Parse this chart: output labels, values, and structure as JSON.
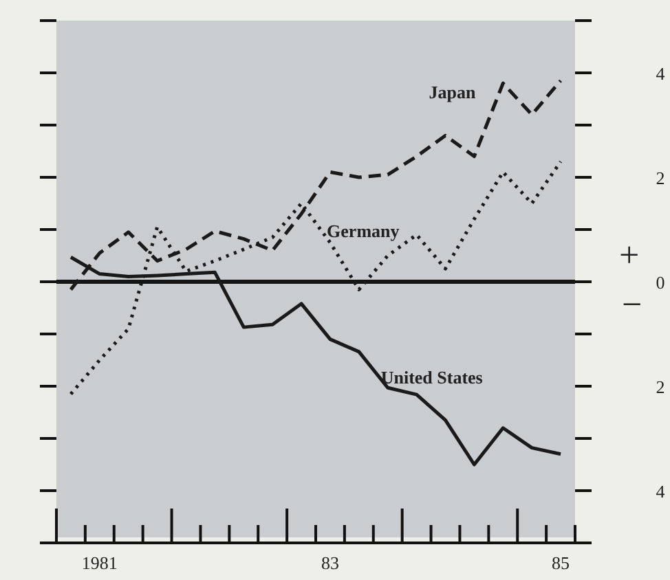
{
  "chart_data": {
    "type": "line",
    "categories": [
      null,
      "1981",
      null,
      null,
      null,
      null,
      null,
      null,
      null,
      "83",
      null,
      null,
      null,
      null,
      null,
      null,
      null,
      "85"
    ],
    "ylim": [
      -5,
      5
    ],
    "yticks": [
      {
        "value": -5,
        "label": null
      },
      {
        "value": -4,
        "label": "4"
      },
      {
        "value": -3,
        "label": null
      },
      {
        "value": -2,
        "label": "2"
      },
      {
        "value": -1,
        "label": null
      },
      0,
      {
        "value": 1,
        "label": null
      },
      {
        "value": 2,
        "label": "2"
      },
      {
        "value": 3,
        "label": null
      },
      {
        "value": 4,
        "label": "4"
      },
      {
        "value": 5,
        "label": null
      }
    ],
    "ref_lines": [
      {
        "axis": "y",
        "value": 0,
        "color": "#151515"
      }
    ],
    "annotations": [
      "+",
      "−"
    ],
    "legend": false,
    "grid": false,
    "marker": "none",
    "series": [
      {
        "name": "Japan",
        "color": "#1a1a1a",
        "line_style": "dashed",
        "values": [
          -0.15,
          0.55,
          0.95,
          0.4,
          0.62,
          0.97,
          0.82,
          0.6,
          1.3,
          2.1,
          2.0,
          2.05,
          2.4,
          2.8,
          2.4,
          3.8,
          3.2,
          3.85
        ]
      },
      {
        "name": "Germany",
        "color": "#1a1a1a",
        "line_style": "dotted",
        "values": [
          -2.15,
          -1.5,
          -0.9,
          1.05,
          0.2,
          0.4,
          0.62,
          0.85,
          1.5,
          0.75,
          -0.15,
          0.5,
          0.9,
          0.25,
          1.2,
          2.1,
          1.5,
          2.3
        ]
      },
      {
        "name": "United States",
        "color": "#1a1a1a",
        "line_style": "solid",
        "values": [
          0.47,
          0.15,
          0.1,
          0.12,
          0.15,
          0.18,
          -0.87,
          -0.82,
          -0.42,
          -1.1,
          -1.34,
          -2.03,
          -2.16,
          -2.65,
          -3.5,
          -2.8,
          -3.18,
          -3.3
        ]
      }
    ]
  }
}
